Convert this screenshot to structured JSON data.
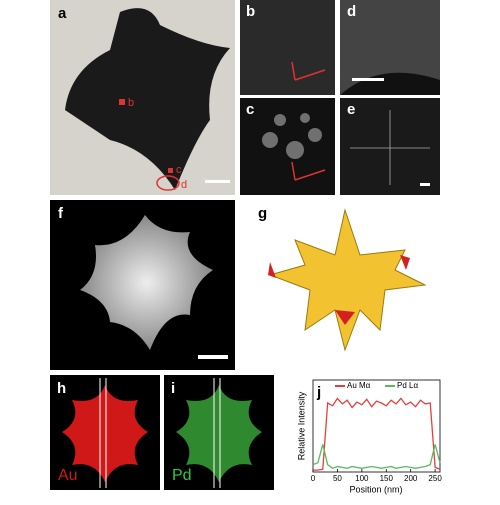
{
  "panel_labels": [
    "a",
    "b",
    "c",
    "d",
    "e",
    "f",
    "g",
    "h",
    "i",
    "j"
  ],
  "panel_a_markers": [
    "b",
    "c",
    "d"
  ],
  "element_labels": [
    "Au",
    "Pd"
  ],
  "chart_data": {
    "type": "line",
    "x_label": "Position (nm)",
    "y_label": "Relative Intensity",
    "x": [
      0,
      10,
      20,
      30,
      40,
      50,
      60,
      70,
      80,
      90,
      100,
      110,
      120,
      130,
      140,
      150,
      160,
      170,
      180,
      190,
      200,
      210,
      220,
      230,
      240,
      250,
      260
    ],
    "series": [
      {
        "name": "Au Mα",
        "color": "#e0403f",
        "values": [
          0.02,
          0.02,
          0.03,
          0.75,
          0.72,
          0.8,
          0.74,
          0.78,
          0.7,
          0.76,
          0.73,
          0.79,
          0.71,
          0.77,
          0.75,
          0.72,
          0.78,
          0.74,
          0.8,
          0.73,
          0.76,
          0.71,
          0.78,
          0.74,
          0.75,
          0.05,
          0.03
        ]
      },
      {
        "name": "Pd Lα",
        "color": "#5cb85c",
        "values": [
          0.08,
          0.1,
          0.3,
          0.08,
          0.04,
          0.06,
          0.05,
          0.04,
          0.06,
          0.05,
          0.04,
          0.05,
          0.06,
          0.05,
          0.04,
          0.05,
          0.06,
          0.04,
          0.05,
          0.06,
          0.05,
          0.04,
          0.05,
          0.06,
          0.08,
          0.3,
          0.1
        ]
      }
    ],
    "xlim": [
      0,
      260
    ],
    "xticks": [
      0,
      50,
      100,
      150,
      200,
      250
    ],
    "ylim": [
      0,
      1
    ],
    "legend": "top"
  }
}
